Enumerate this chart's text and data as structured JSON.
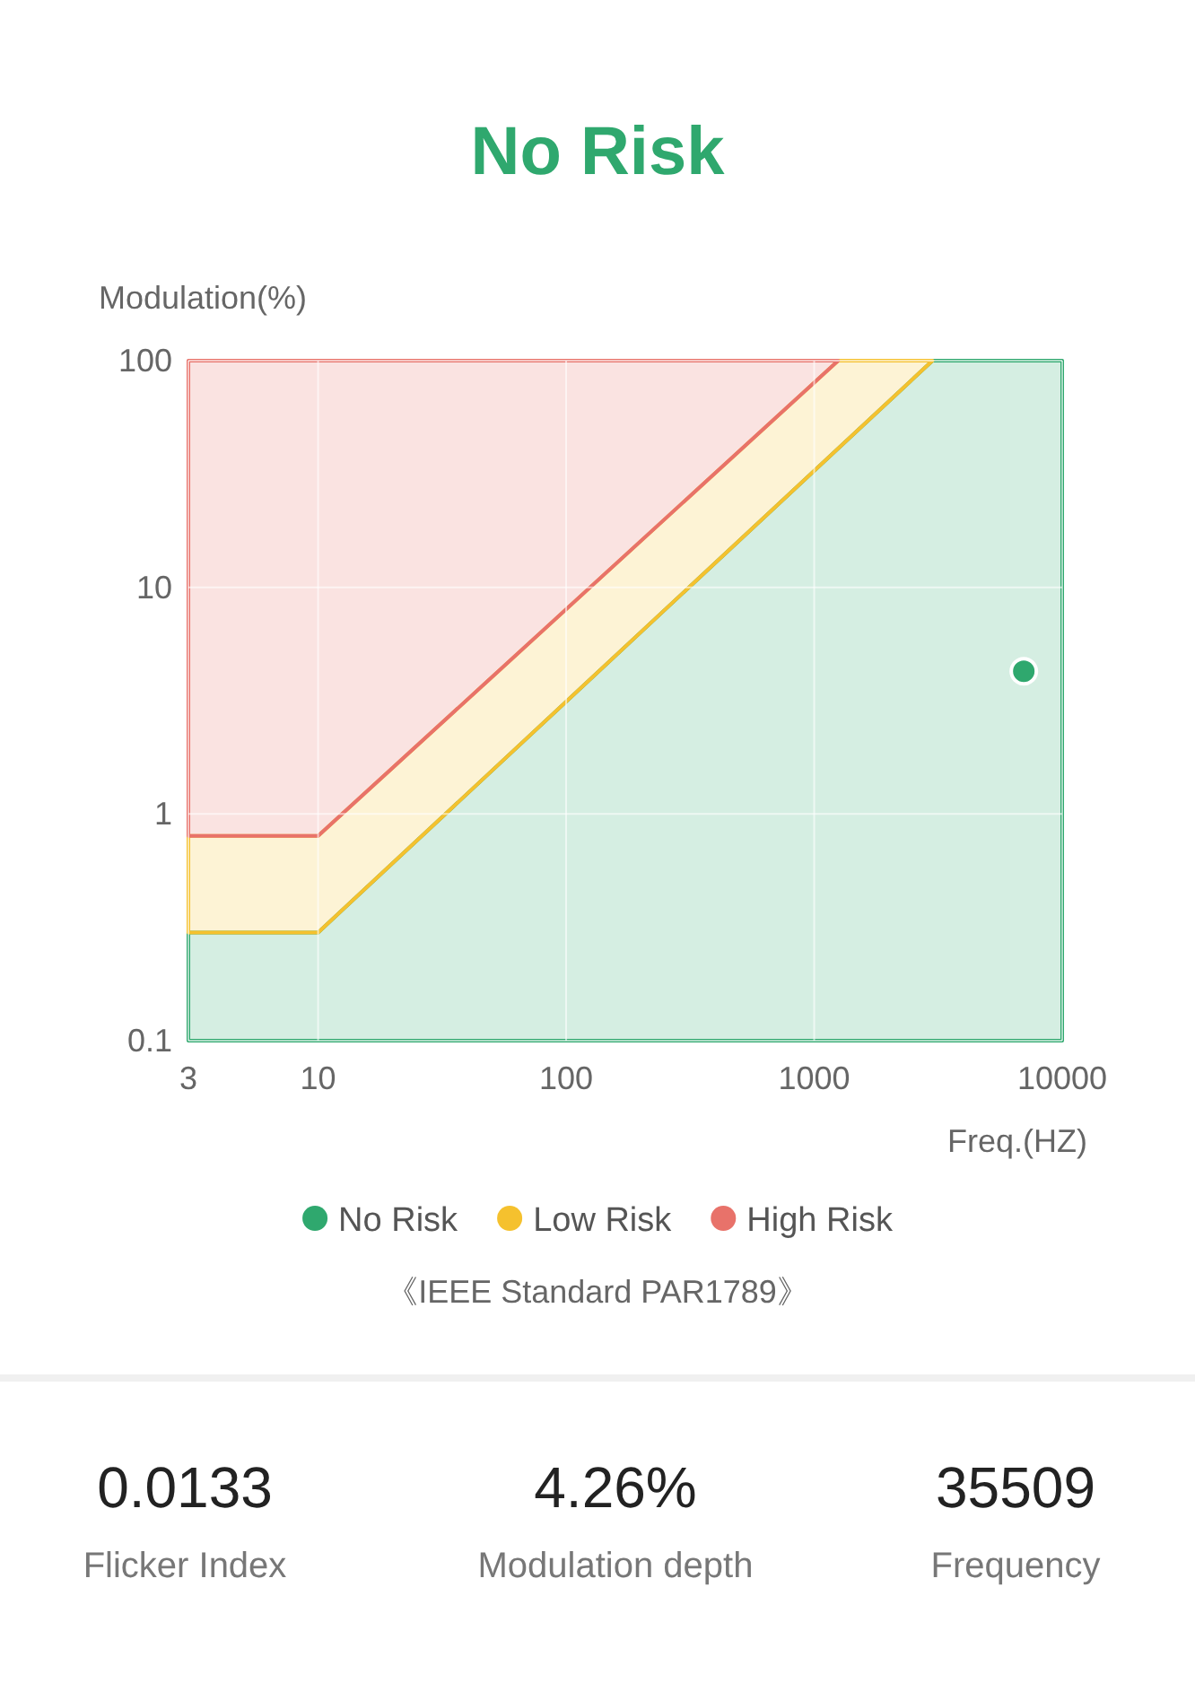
{
  "chart_data": {
    "type": "area",
    "title": "No Risk",
    "ylabel": "Modulation(%)",
    "xlabel": "Freq.(HZ)",
    "log": "xy",
    "xlim": [
      3,
      10000
    ],
    "ylim": [
      0.1,
      100
    ],
    "xticks": [
      3,
      10,
      100,
      1000,
      10000
    ],
    "yticks": [
      0.1,
      1,
      10,
      100
    ],
    "grid": true,
    "legend": "bottom",
    "series": [
      {
        "name": "No Risk",
        "color": "#2fa86e",
        "x": [
          3,
          10,
          3000,
          10000
        ],
        "values": [
          0.3,
          0.3,
          100,
          100
        ]
      },
      {
        "name": "Low Risk",
        "color": "#f5c12e",
        "x": [
          3,
          10,
          1250,
          3000
        ],
        "values": [
          0.8,
          0.8,
          100,
          100
        ]
      },
      {
        "name": "High Risk",
        "color": "#e8726a",
        "x": [
          3,
          10,
          1250
        ],
        "values": [
          100,
          100,
          100
        ]
      },
      {
        "type": "scatter",
        "marker": "circle",
        "color": "#2fa86e",
        "x": [
          7000
        ],
        "values": [
          4.26
        ]
      }
    ],
    "annotations": [
      "《IEEE Standard PAR1789》",
      "0.0133",
      "Flicker Index",
      "4.26%",
      "Modulation depth",
      "35509",
      "Frequency"
    ]
  }
}
